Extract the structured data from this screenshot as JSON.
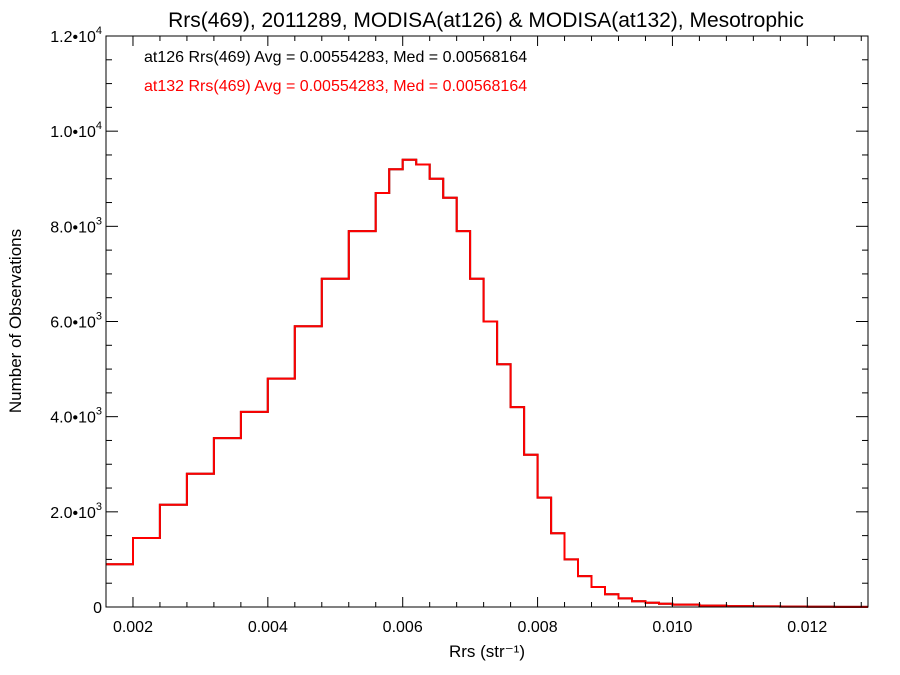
{
  "chart_data": {
    "type": "histogram",
    "title": "Rrs(469), 2011289, MODISA(at126) & MODISA(at132), Mesotrophic",
    "xlabel": "Rrs (str⁻¹)",
    "ylabel": "Number of Observations",
    "xlim": [
      0.0016,
      0.0129
    ],
    "ylim": [
      0,
      12000
    ],
    "x_ticks": [
      0.002,
      0.004,
      0.006,
      0.008,
      0.01,
      0.012
    ],
    "x_tick_labels": [
      "0.002",
      "0.004",
      "0.006",
      "0.008",
      "0.010",
      "0.012"
    ],
    "y_ticks": [
      0,
      2000,
      4000,
      6000,
      8000,
      10000,
      12000
    ],
    "y_tick_labels": [
      {
        "mantissa": "0",
        "exp": ""
      },
      {
        "mantissa": "2.0•10",
        "exp": "3"
      },
      {
        "mantissa": "4.0•10",
        "exp": "3"
      },
      {
        "mantissa": "6.0•10",
        "exp": "3"
      },
      {
        "mantissa": "8.0•10",
        "exp": "3"
      },
      {
        "mantissa": "1.0•10",
        "exp": "4"
      },
      {
        "mantissa": "1.2•10",
        "exp": "4"
      }
    ],
    "annotations": [
      {
        "text": "at126 Rrs(469) Avg = 0.00554283, Med = 0.00568164",
        "color": "#000000"
      },
      {
        "text": "at132 Rrs(469) Avg = 0.00554283, Med = 0.00568164",
        "color": "#ff0000"
      }
    ],
    "series": [
      {
        "name": "at126",
        "color": "#000000",
        "points": [
          [
            0.0016,
            900
          ],
          [
            0.002,
            1450
          ],
          [
            0.0024,
            2150
          ],
          [
            0.0028,
            2800
          ],
          [
            0.0032,
            3550
          ],
          [
            0.0036,
            4100
          ],
          [
            0.004,
            4800
          ],
          [
            0.0044,
            5900
          ],
          [
            0.0048,
            6900
          ],
          [
            0.0052,
            7900
          ],
          [
            0.0056,
            8700
          ],
          [
            0.0058,
            9200
          ],
          [
            0.006,
            9400
          ],
          [
            0.0062,
            9300
          ],
          [
            0.0064,
            9000
          ],
          [
            0.0066,
            8600
          ],
          [
            0.0068,
            7900
          ],
          [
            0.007,
            6900
          ],
          [
            0.0072,
            6000
          ],
          [
            0.0074,
            5100
          ],
          [
            0.0076,
            4200
          ],
          [
            0.0078,
            3200
          ],
          [
            0.008,
            2300
          ],
          [
            0.0082,
            1550
          ],
          [
            0.0084,
            1000
          ],
          [
            0.0086,
            650
          ],
          [
            0.0088,
            420
          ],
          [
            0.009,
            270
          ],
          [
            0.0092,
            180
          ],
          [
            0.0094,
            120
          ],
          [
            0.0096,
            90
          ],
          [
            0.0098,
            70
          ],
          [
            0.01,
            50
          ],
          [
            0.0104,
            30
          ],
          [
            0.0108,
            18
          ],
          [
            0.0112,
            12
          ],
          [
            0.0116,
            8
          ],
          [
            0.012,
            5
          ],
          [
            0.0124,
            3
          ],
          [
            0.0129,
            2
          ]
        ]
      },
      {
        "name": "at132",
        "color": "#ff0000",
        "points": [
          [
            0.0016,
            900
          ],
          [
            0.002,
            1450
          ],
          [
            0.0024,
            2150
          ],
          [
            0.0028,
            2800
          ],
          [
            0.0032,
            3550
          ],
          [
            0.0036,
            4100
          ],
          [
            0.004,
            4800
          ],
          [
            0.0044,
            5900
          ],
          [
            0.0048,
            6900
          ],
          [
            0.0052,
            7900
          ],
          [
            0.0056,
            8700
          ],
          [
            0.0058,
            9200
          ],
          [
            0.006,
            9400
          ],
          [
            0.0062,
            9300
          ],
          [
            0.0064,
            9000
          ],
          [
            0.0066,
            8600
          ],
          [
            0.0068,
            7900
          ],
          [
            0.007,
            6900
          ],
          [
            0.0072,
            6000
          ],
          [
            0.0074,
            5100
          ],
          [
            0.0076,
            4200
          ],
          [
            0.0078,
            3200
          ],
          [
            0.008,
            2300
          ],
          [
            0.0082,
            1550
          ],
          [
            0.0084,
            1000
          ],
          [
            0.0086,
            650
          ],
          [
            0.0088,
            420
          ],
          [
            0.009,
            270
          ],
          [
            0.0092,
            180
          ],
          [
            0.0094,
            120
          ],
          [
            0.0096,
            90
          ],
          [
            0.0098,
            70
          ],
          [
            0.01,
            50
          ],
          [
            0.0104,
            30
          ],
          [
            0.0108,
            18
          ],
          [
            0.0112,
            12
          ],
          [
            0.0116,
            8
          ],
          [
            0.012,
            5
          ],
          [
            0.0124,
            3
          ],
          [
            0.0129,
            2
          ]
        ]
      }
    ]
  }
}
